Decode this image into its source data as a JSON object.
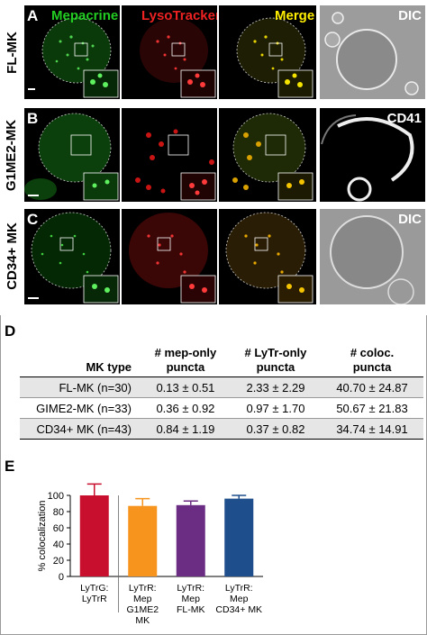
{
  "panel_letters": [
    "A",
    "B",
    "C",
    "D",
    "E"
  ],
  "channels": [
    {
      "label": "Mepacrine",
      "color": "#22cc22"
    },
    {
      "label": "LysoTracker",
      "color": "#ee2222"
    },
    {
      "label": "Merge",
      "color": "#ffee00"
    }
  ],
  "rows": [
    {
      "letter": "A",
      "label": "FL-MK",
      "fourth_label": "DIC"
    },
    {
      "letter": "B",
      "label": "G1ME2-MK",
      "fourth_label": "CD41"
    },
    {
      "letter": "C",
      "label": "CD34+ MK",
      "fourth_label": "DIC"
    }
  ],
  "table": {
    "headers": [
      "MK type",
      "# mep-only\npuncta",
      "# LyTr-only\npuncta",
      "# coloc.\npuncta"
    ],
    "rows": [
      [
        "FL-MK (n=30)",
        "0.13 ± 0.51",
        "2.33 ± 2.29",
        "40.70 ± 24.87"
      ],
      [
        "GIME2-MK (n=33)",
        "0.36 ± 0.92",
        "0.97 ± 1.70",
        "50.67 ± 21.83"
      ],
      [
        "CD34+ MK (n=43)",
        "0.84 ± 1.19",
        "0.37 ± 0.82",
        "34.74 ± 14.91"
      ]
    ]
  },
  "chart_data": {
    "type": "bar",
    "categories": [
      "LyTrG:\nLyTrR",
      "LyTrR:\nMep\nG1ME2\nMK",
      "LyTrR:\nMep\nFL-MK",
      "LyTrR:\nMep\nCD34+ MK"
    ],
    "values": [
      100,
      87,
      88,
      96
    ],
    "errors": [
      14,
      9,
      5,
      4
    ],
    "colors": [
      "#c8102e",
      "#f7941d",
      "#6b2d83",
      "#1f4e8c"
    ],
    "ylabel": "% colocalization",
    "ylim": [
      0,
      120
    ],
    "yticks": [
      "0",
      "20",
      "40",
      "60",
      "80",
      "100"
    ],
    "divider_after": 0
  }
}
